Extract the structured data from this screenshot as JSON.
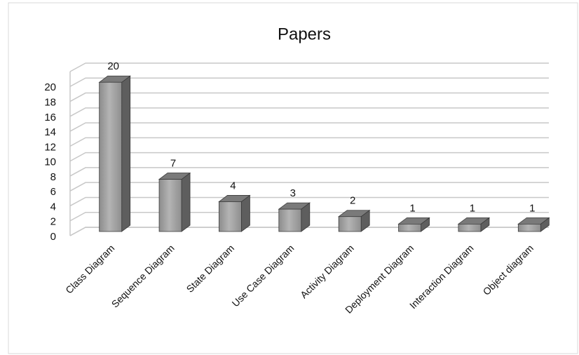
{
  "chart_data": {
    "type": "bar3d",
    "title": "Papers",
    "categories": [
      "Class Diagram",
      "Sequence Diagram",
      "State Diagram",
      "Use Case Diagram",
      "Activity Diagram",
      "Deployment Diagram",
      "Interaction Diagram",
      "Object diagram"
    ],
    "values": [
      20,
      7,
      4,
      3,
      2,
      1,
      1,
      1
    ],
    "color": "#9a9a9a",
    "ylim": [
      0,
      22
    ],
    "yticks": [
      0,
      2,
      4,
      6,
      8,
      10,
      12,
      14,
      16,
      18,
      20
    ],
    "grid": true
  }
}
